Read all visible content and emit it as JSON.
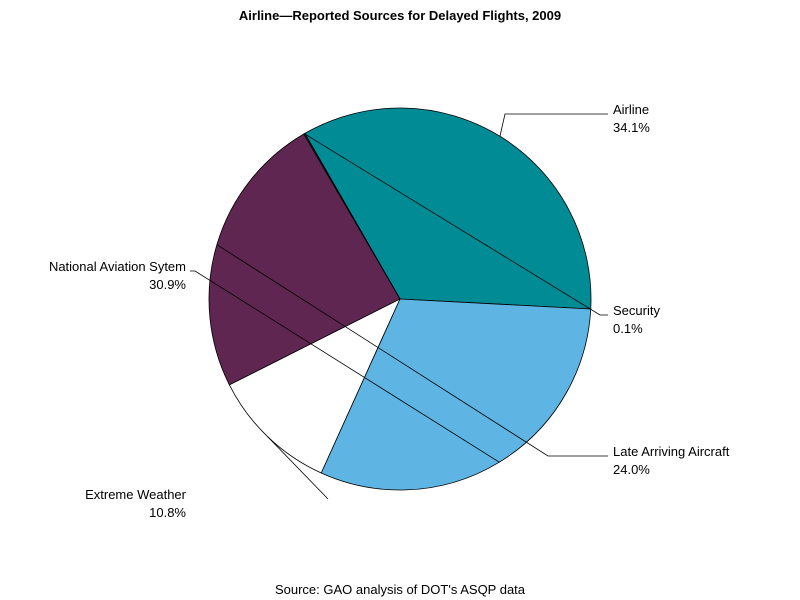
{
  "chart_data": {
    "type": "pie",
    "title": "Airline—Reported Sources for Delayed Flights, 2009",
    "source": "Source: GAO analysis of DOT's ASQP data",
    "unit": "%",
    "slices": [
      {
        "name": "Airline",
        "value": 34.1,
        "value_label": "34.1%",
        "color": "#008B95"
      },
      {
        "name": "Security",
        "value": 0.1,
        "value_label": "0.1%",
        "color": "#7B2D5E"
      },
      {
        "name": "Late Arriving Aircraft",
        "value": 24.0,
        "value_label": "24.0%",
        "color": "#5E2650"
      },
      {
        "name": "Extreme Weather",
        "value": 10.8,
        "value_label": "10.8%",
        "color": "#FFFFFF"
      },
      {
        "name": "National Aviation Sytem",
        "value": 30.9,
        "value_label": "30.9%",
        "color": "#5EB4E2"
      }
    ],
    "legend": "none"
  }
}
